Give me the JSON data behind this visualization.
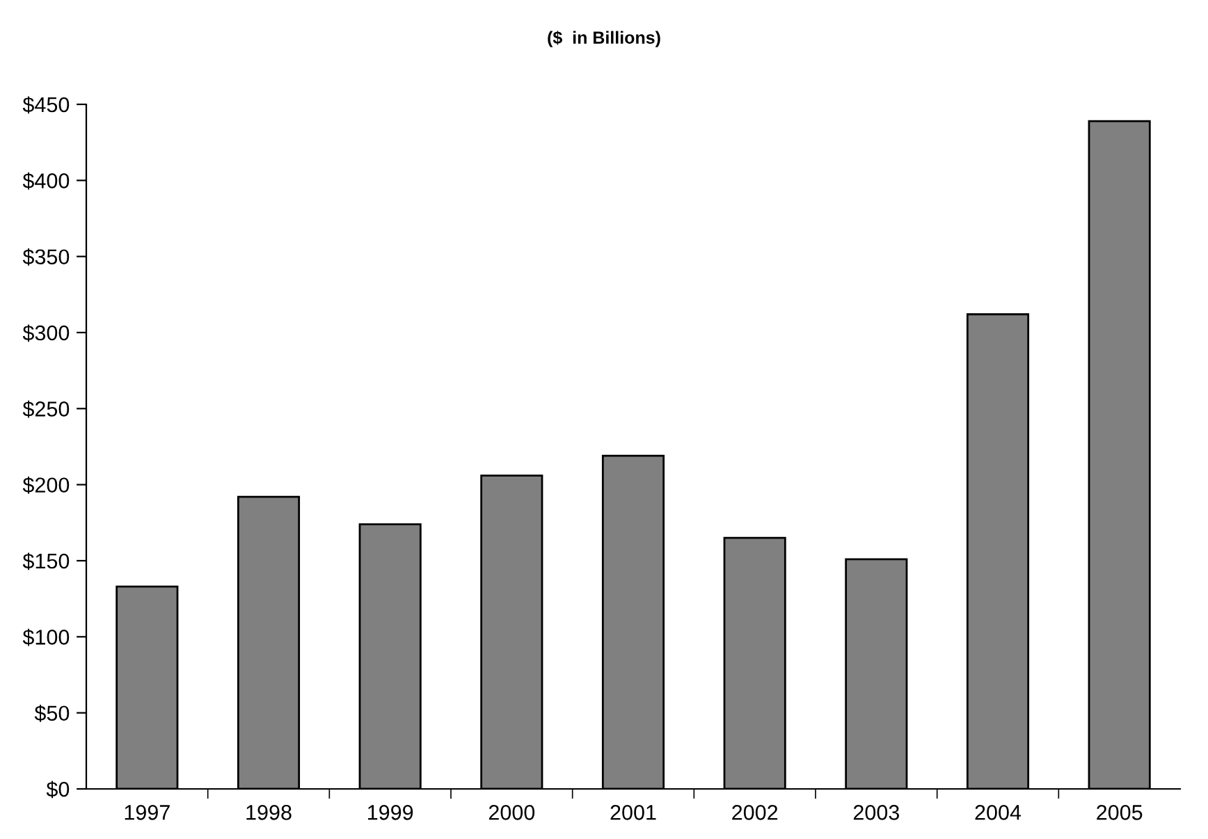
{
  "chart_data": {
    "type": "bar",
    "title": "($  in Billions)",
    "categories": [
      "1997",
      "1998",
      "1999",
      "2000",
      "2001",
      "2002",
      "2003",
      "2004",
      "2005"
    ],
    "values": [
      133,
      192,
      174,
      206,
      219,
      165,
      151,
      312,
      439
    ],
    "color": "#808080",
    "ylim": [
      0,
      450
    ],
    "yticks": [
      {
        "value": 0,
        "label": "$0"
      },
      {
        "value": 50,
        "label": "$50"
      },
      {
        "value": 100,
        "label": "$100"
      },
      {
        "value": 150,
        "label": "$150"
      },
      {
        "value": 200,
        "label": "$200"
      },
      {
        "value": 250,
        "label": "$250"
      },
      {
        "value": 300,
        "label": "$300"
      },
      {
        "value": 350,
        "label": "$350"
      },
      {
        "value": 400,
        "label": "$400"
      },
      {
        "value": 450,
        "label": "$450"
      }
    ],
    "grid": false,
    "legend": false
  }
}
